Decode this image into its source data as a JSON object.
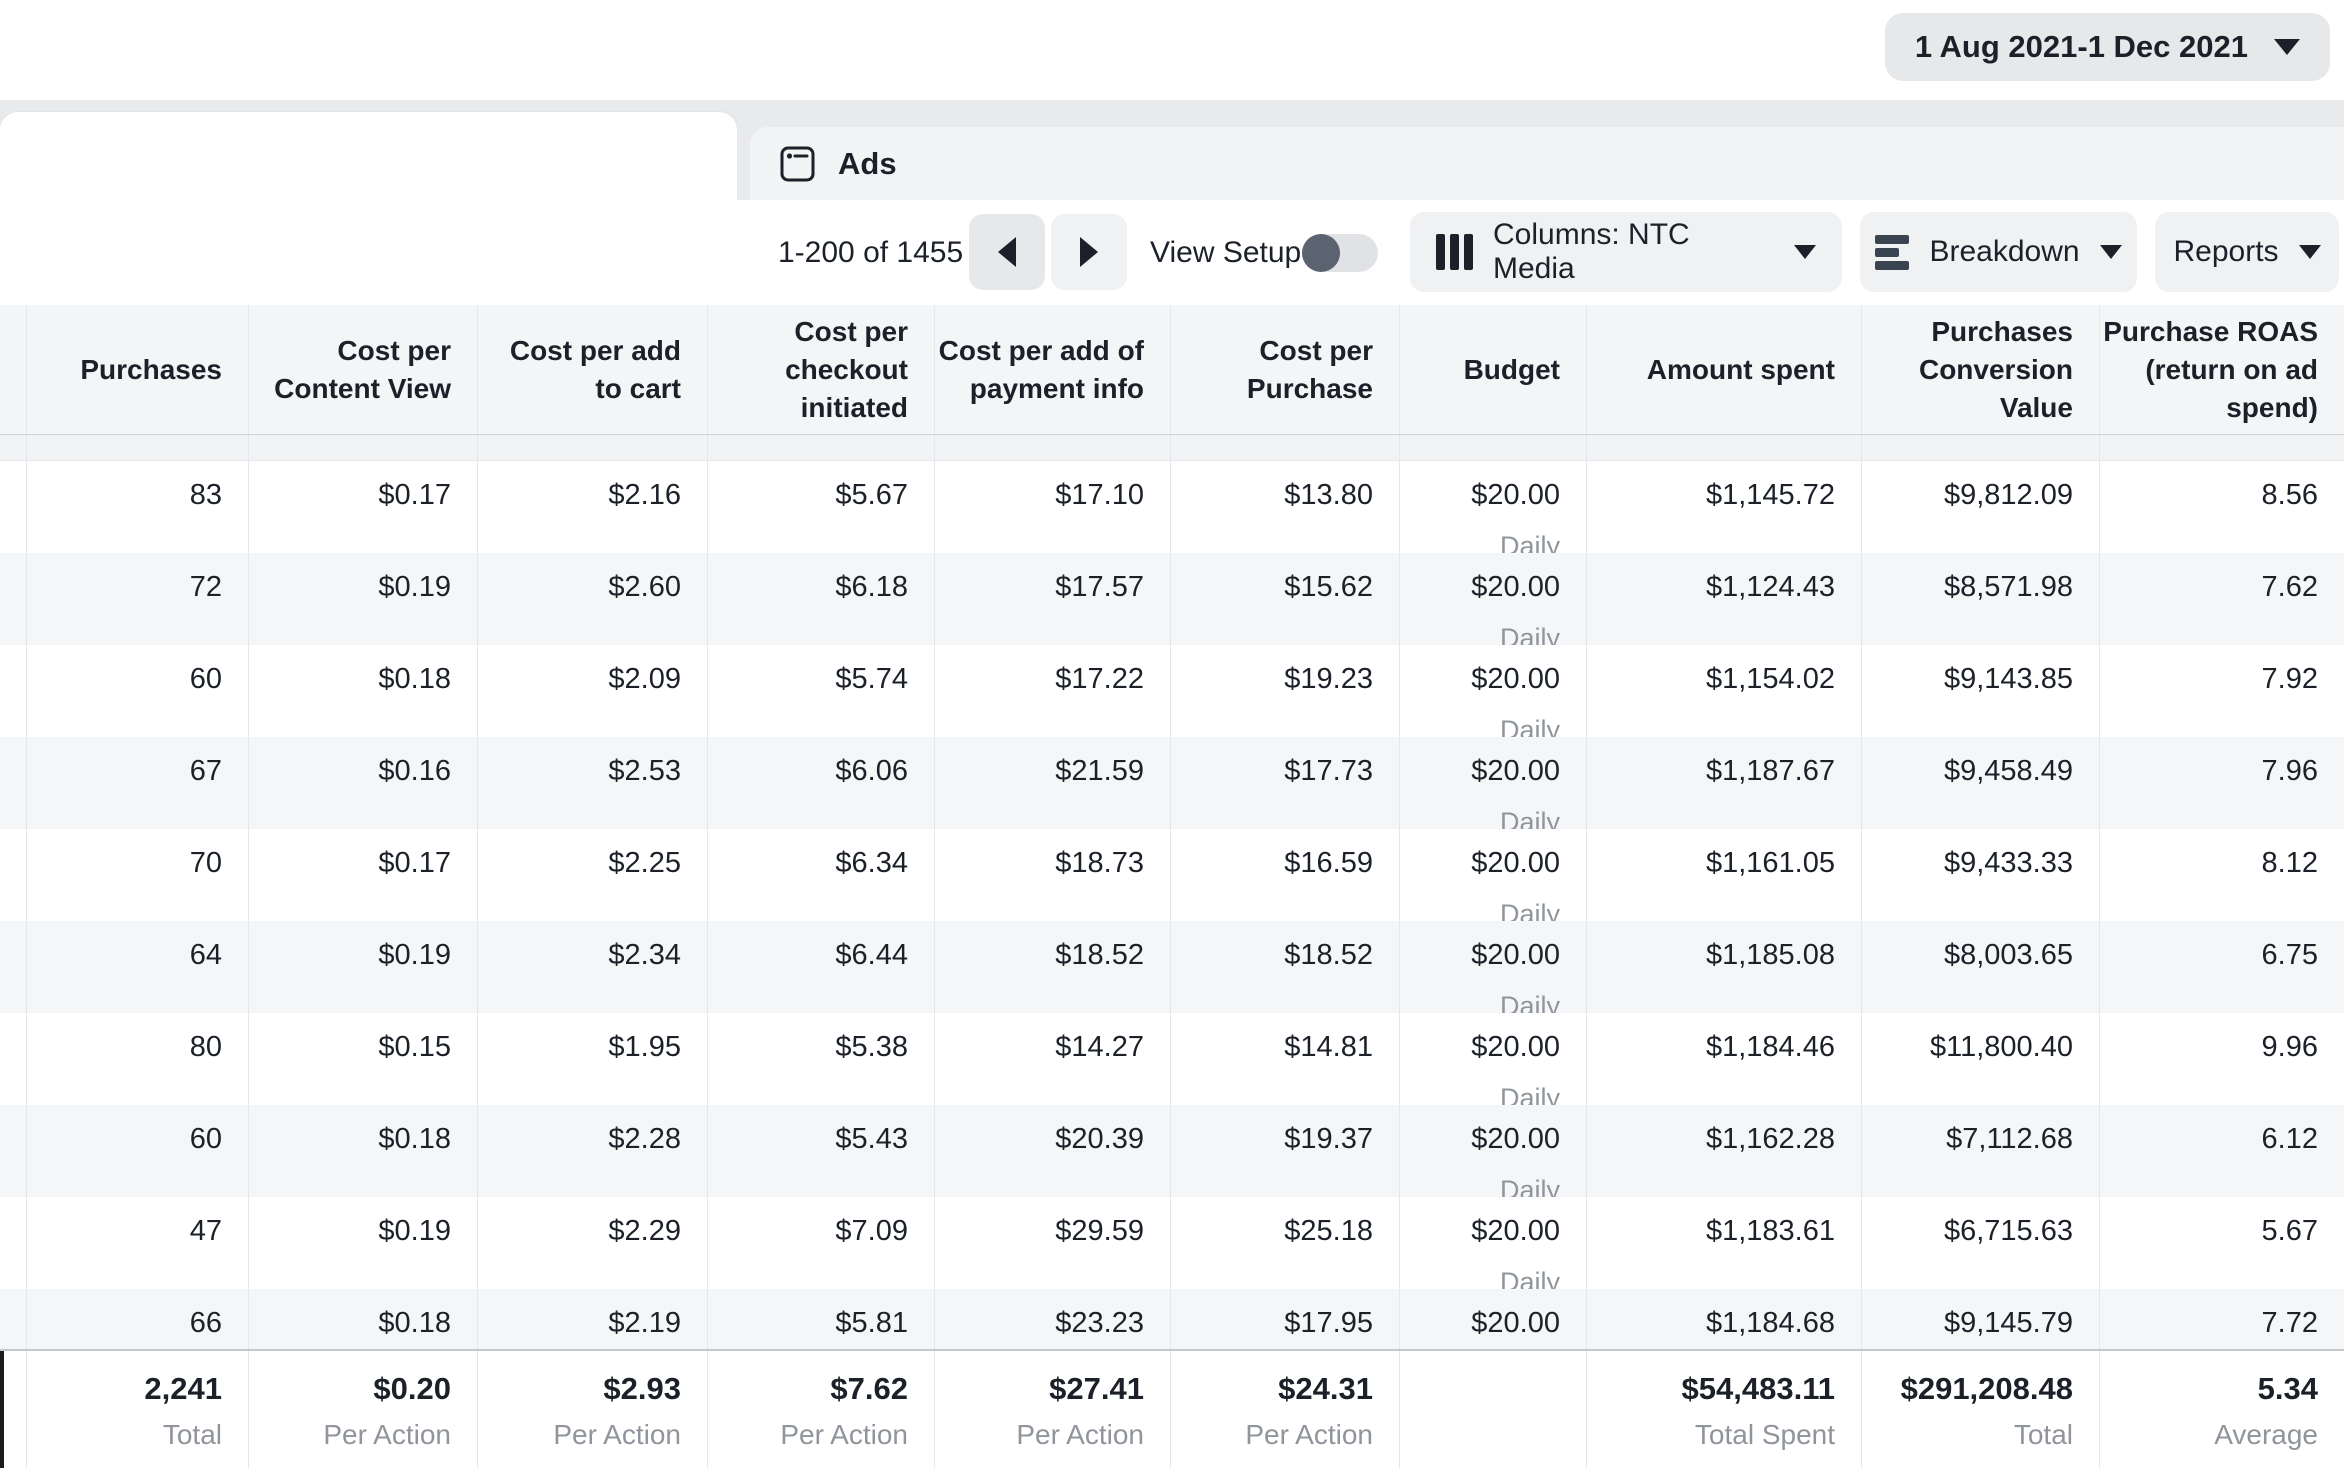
{
  "header": {
    "date_range": "1 Aug 2021-1 Dec 2021"
  },
  "tabs": {
    "ads_label": "Ads"
  },
  "toolbar": {
    "pagination": "1-200 of 1455",
    "view_setup_label": "View Setup",
    "view_setup_on": false,
    "columns_label": "Columns: NTC Media",
    "breakdown_label": "Breakdown",
    "reports_label": "Reports"
  },
  "table": {
    "columns": [
      "Purchases",
      "Cost per Content View",
      "Cost per add to cart",
      "Cost per checkout initiated",
      "Cost per add of payment info",
      "Cost per Purchase",
      "Budget",
      "Amount spent",
      "Purchases Conversion Value",
      "Purchase ROAS (return on ad spend)"
    ],
    "rows": [
      {
        "purchases": "83",
        "cost_per_content_view": "$0.17",
        "cost_per_add_to_cart": "$2.16",
        "cost_per_checkout_initiated": "$5.67",
        "cost_per_add_of_payment_info": "$17.10",
        "cost_per_purchase": "$13.80",
        "budget": "$20.00",
        "budget_period": "Daily",
        "amount_spent": "$1,145.72",
        "purchases_conversion_value": "$9,812.09",
        "purchase_roas": "8.56"
      },
      {
        "purchases": "72",
        "cost_per_content_view": "$0.19",
        "cost_per_add_to_cart": "$2.60",
        "cost_per_checkout_initiated": "$6.18",
        "cost_per_add_of_payment_info": "$17.57",
        "cost_per_purchase": "$15.62",
        "budget": "$20.00",
        "budget_period": "Daily",
        "amount_spent": "$1,124.43",
        "purchases_conversion_value": "$8,571.98",
        "purchase_roas": "7.62"
      },
      {
        "purchases": "60",
        "cost_per_content_view": "$0.18",
        "cost_per_add_to_cart": "$2.09",
        "cost_per_checkout_initiated": "$5.74",
        "cost_per_add_of_payment_info": "$17.22",
        "cost_per_purchase": "$19.23",
        "budget": "$20.00",
        "budget_period": "Daily",
        "amount_spent": "$1,154.02",
        "purchases_conversion_value": "$9,143.85",
        "purchase_roas": "7.92"
      },
      {
        "purchases": "67",
        "cost_per_content_view": "$0.16",
        "cost_per_add_to_cart": "$2.53",
        "cost_per_checkout_initiated": "$6.06",
        "cost_per_add_of_payment_info": "$21.59",
        "cost_per_purchase": "$17.73",
        "budget": "$20.00",
        "budget_period": "Daily",
        "amount_spent": "$1,187.67",
        "purchases_conversion_value": "$9,458.49",
        "purchase_roas": "7.96"
      },
      {
        "purchases": "70",
        "cost_per_content_view": "$0.17",
        "cost_per_add_to_cart": "$2.25",
        "cost_per_checkout_initiated": "$6.34",
        "cost_per_add_of_payment_info": "$18.73",
        "cost_per_purchase": "$16.59",
        "budget": "$20.00",
        "budget_period": "Daily",
        "amount_spent": "$1,161.05",
        "purchases_conversion_value": "$9,433.33",
        "purchase_roas": "8.12"
      },
      {
        "purchases": "64",
        "cost_per_content_view": "$0.19",
        "cost_per_add_to_cart": "$2.34",
        "cost_per_checkout_initiated": "$6.44",
        "cost_per_add_of_payment_info": "$18.52",
        "cost_per_purchase": "$18.52",
        "budget": "$20.00",
        "budget_period": "Daily",
        "amount_spent": "$1,185.08",
        "purchases_conversion_value": "$8,003.65",
        "purchase_roas": "6.75"
      },
      {
        "purchases": "80",
        "cost_per_content_view": "$0.15",
        "cost_per_add_to_cart": "$1.95",
        "cost_per_checkout_initiated": "$5.38",
        "cost_per_add_of_payment_info": "$14.27",
        "cost_per_purchase": "$14.81",
        "budget": "$20.00",
        "budget_period": "Daily",
        "amount_spent": "$1,184.46",
        "purchases_conversion_value": "$11,800.40",
        "purchase_roas": "9.96"
      },
      {
        "purchases": "60",
        "cost_per_content_view": "$0.18",
        "cost_per_add_to_cart": "$2.28",
        "cost_per_checkout_initiated": "$5.43",
        "cost_per_add_of_payment_info": "$20.39",
        "cost_per_purchase": "$19.37",
        "budget": "$20.00",
        "budget_period": "Daily",
        "amount_spent": "$1,162.28",
        "purchases_conversion_value": "$7,112.68",
        "purchase_roas": "6.12"
      },
      {
        "purchases": "47",
        "cost_per_content_view": "$0.19",
        "cost_per_add_to_cart": "$2.29",
        "cost_per_checkout_initiated": "$7.09",
        "cost_per_add_of_payment_info": "$29.59",
        "cost_per_purchase": "$25.18",
        "budget": "$20.00",
        "budget_period": "Daily",
        "amount_spent": "$1,183.61",
        "purchases_conversion_value": "$6,715.63",
        "purchase_roas": "5.67"
      },
      {
        "purchases": "66",
        "cost_per_content_view": "$0.18",
        "cost_per_add_to_cart": "$2.19",
        "cost_per_checkout_initiated": "$5.81",
        "cost_per_add_of_payment_info": "$23.23",
        "cost_per_purchase": "$17.95",
        "budget": "$20.00",
        "budget_period": "",
        "amount_spent": "$1,184.68",
        "purchases_conversion_value": "$9,145.79",
        "purchase_roas": "7.72"
      }
    ],
    "totals": [
      {
        "value": "2,241",
        "label": "Total"
      },
      {
        "value": "$0.20",
        "label": "Per Action"
      },
      {
        "value": "$2.93",
        "label": "Per Action"
      },
      {
        "value": "$7.62",
        "label": "Per Action"
      },
      {
        "value": "$27.41",
        "label": "Per Action"
      },
      {
        "value": "$24.31",
        "label": "Per Action"
      },
      {
        "value": "",
        "label": ""
      },
      {
        "value": "$54,483.11",
        "label": "Total Spent"
      },
      {
        "value": "$291,208.48",
        "label": "Total"
      },
      {
        "value": "5.34",
        "label": "Average"
      }
    ]
  }
}
